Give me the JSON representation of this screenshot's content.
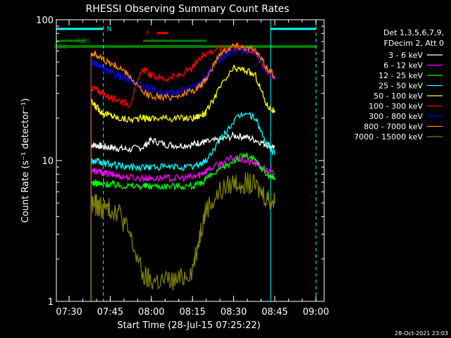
{
  "chart_data": {
    "type": "line",
    "title": "RHESSI Observing Summary Count Rates",
    "xlabel": "Start Time (28-Jul-15 07:25:22)",
    "ylabel": "Count Rate (s⁻¹ detector⁻¹)",
    "yscale": "log",
    "ylim": [
      1,
      100
    ],
    "xlim": [
      "07:25:22",
      "09:03:00"
    ],
    "x_ticks": [
      "07:30",
      "07:45",
      "08:00",
      "08:15",
      "08:30",
      "08:45",
      "09:00"
    ],
    "y_ticks": [
      "1",
      "10",
      "100"
    ],
    "grid": false,
    "legend_position": "right",
    "legend_header": [
      "Det 1,3,5,6,7,9,",
      "FDecim 2, Att 0"
    ],
    "timestamp": "28-Oct-2021 23:03",
    "annotations": [
      {
        "label": "N",
        "color": "#00ffff"
      },
      {
        "label": "F",
        "color": "#ff0000"
      },
      {
        "label": "RD0",
        "color": "#008000"
      },
      {
        "label": "RD6",
        "color": "#008000"
      }
    ],
    "flag_intervals": {
      "N": [
        [
          "07:25:22",
          "07:42:30"
        ],
        [
          "08:43:30",
          "09:00:00"
        ]
      ],
      "F": [
        [
          "08:02:00",
          "08:06:00"
        ]
      ],
      "RD0": [
        [
          "07:25:22",
          "07:36:00"
        ],
        [
          "07:57:00",
          "08:20:00"
        ]
      ],
      "RD6": [
        [
          "07:25:22",
          "09:00:00"
        ]
      ]
    },
    "x": [
      "07:38",
      "07:40",
      "07:42",
      "07:45",
      "07:48",
      "07:52",
      "07:57",
      "08:00",
      "08:05",
      "08:10",
      "08:15",
      "08:18",
      "08:20",
      "08:25",
      "08:30",
      "08:34",
      "08:38",
      "08:42",
      "08:45"
    ],
    "series": [
      {
        "name": "3 - 6 keV",
        "color": "#ffffff",
        "values": [
          13,
          12.8,
          12.6,
          12.4,
          12.2,
          12,
          12.5,
          14,
          13,
          12.8,
          13,
          13.5,
          13.5,
          14,
          15,
          14.8,
          14,
          13,
          12.5
        ]
      },
      {
        "name": "6 - 12 keV",
        "color": "#ff00ff",
        "values": [
          8.5,
          8.4,
          8.2,
          8,
          7.8,
          7.6,
          7.5,
          7.5,
          7.5,
          7.5,
          7.6,
          8,
          8.5,
          9.5,
          10.5,
          10,
          9.5,
          8.5,
          8
        ]
      },
      {
        "name": "12 - 25 keV",
        "color": "#00ff00",
        "values": [
          7,
          6.9,
          6.8,
          6.8,
          6.7,
          6.6,
          6.6,
          6.6,
          6.6,
          6.6,
          6.6,
          6.8,
          7.5,
          8.5,
          10,
          11,
          10,
          8,
          7.5
        ]
      },
      {
        "name": "25 - 50 keV",
        "color": "#00ffff",
        "values": [
          10,
          9.8,
          9.6,
          9.4,
          9.2,
          9,
          9,
          9,
          9,
          9,
          9,
          9.5,
          10,
          14,
          19,
          22,
          20,
          13,
          11
        ]
      },
      {
        "name": "50 - 100 keV",
        "color": "#ffff00",
        "values": [
          26,
          24,
          22,
          21,
          20,
          19.5,
          20,
          20,
          20,
          20,
          20,
          21,
          22,
          33,
          45,
          44,
          40,
          25,
          22
        ]
      },
      {
        "name": "100 - 300 keV",
        "color": "#ff0000",
        "values": [
          33,
          32,
          30,
          28,
          27,
          25,
          45,
          40,
          38,
          40,
          45,
          55,
          58,
          63,
          64,
          62,
          58,
          43,
          38
        ]
      },
      {
        "name": "300 - 800 keV",
        "color": "#0000ff",
        "values": [
          50,
          48,
          45,
          42,
          40,
          37,
          33,
          32,
          30,
          31,
          33,
          36,
          40,
          53,
          60,
          61,
          58,
          43,
          38
        ]
      },
      {
        "name": "800 - 7000 keV",
        "color": "#ff8800",
        "values": [
          58,
          56,
          53,
          49,
          46,
          40,
          30,
          29,
          28,
          29,
          31,
          34,
          38,
          58,
          66,
          64,
          60,
          46,
          40
        ]
      },
      {
        "name": "7000 - 15000 keV",
        "color": "#808000",
        "values": [
          5,
          4.8,
          4.6,
          4.5,
          4.4,
          3,
          1.5,
          1.4,
          1.4,
          1.4,
          1.7,
          3.2,
          4.5,
          6,
          7,
          7,
          6.5,
          5.5,
          5
        ]
      }
    ]
  }
}
